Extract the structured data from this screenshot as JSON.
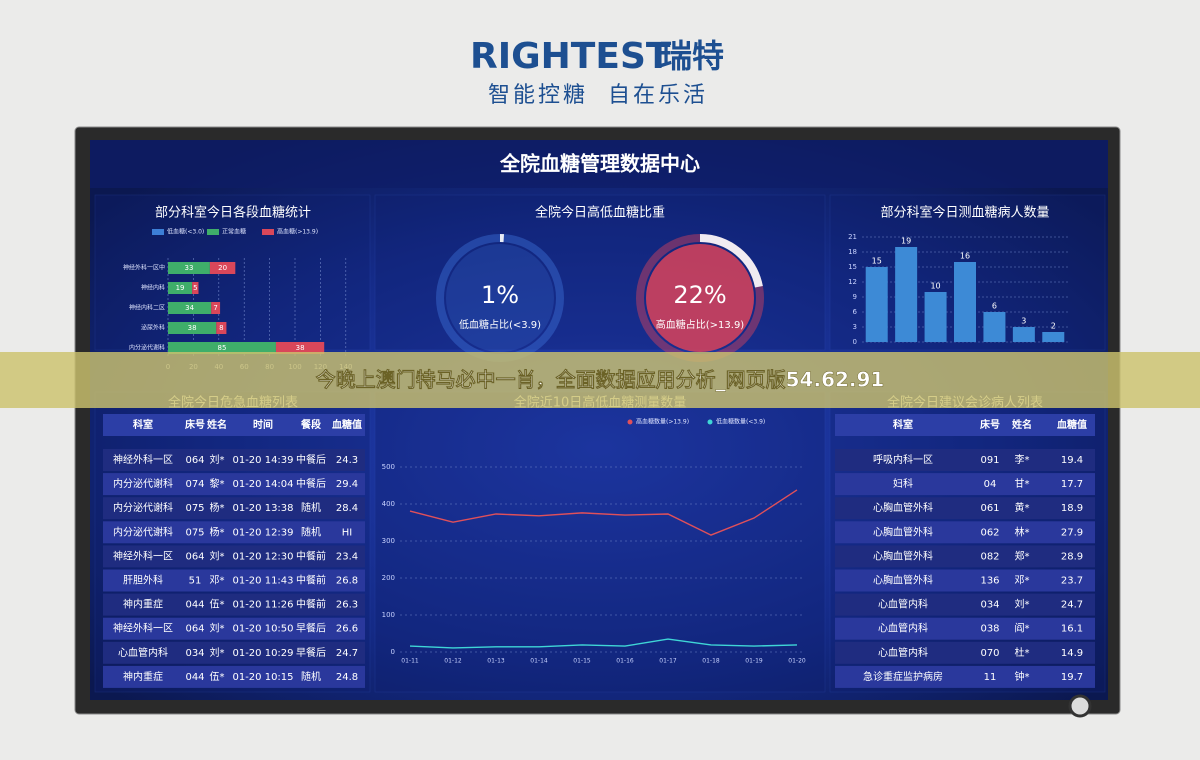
{
  "header": {
    "brand": "RIGHTEST",
    "brand_cn": "瑞特",
    "slogan": "智能控糖  自在乐活"
  },
  "banner": {
    "text": "今晚上澳门特马必中一肖，全面数据应用分析_网页版54.62.91"
  },
  "dashboard": {
    "title": "全院血糖管理数据中心"
  },
  "chart_data": [
    {
      "type": "bar",
      "orientation": "horizontal",
      "stacked": true,
      "title": "部分科室今日各段血糖统计",
      "categories": [
        "神经外科一区中",
        "神经内科",
        "神经内科二区",
        "泌尿外科",
        "内分泌代谢科"
      ],
      "series": [
        {
          "name": "低血糖(<3.0)",
          "color": "#3d7fd6",
          "values": [
            0,
            0,
            0,
            0,
            0
          ]
        },
        {
          "name": "正常血糖",
          "color": "#3fae6a",
          "values": [
            33,
            19,
            34,
            38,
            85
          ]
        },
        {
          "name": "高血糖(>13.9)",
          "color": "#d9475a",
          "values": [
            20,
            5,
            7,
            8,
            38
          ]
        }
      ],
      "xlim": [
        0,
        150
      ],
      "xticks": [
        0,
        20,
        40,
        60,
        80,
        100,
        120,
        140
      ],
      "grid": true
    },
    {
      "type": "gauge",
      "title": "全院今日高低血糖比重",
      "categories": [
        "低血糖占比(<3.9)",
        "高血糖占比(>13.9)"
      ],
      "values": [
        1,
        22
      ],
      "value_labels": [
        "1%",
        "22%"
      ],
      "colors": [
        "#3b6fd4",
        "#d9435a"
      ]
    },
    {
      "type": "bar",
      "orientation": "vertical",
      "title": "部分科室今日测血糖病人数量",
      "categories": [
        null,
        null,
        null,
        null,
        null,
        null,
        null
      ],
      "values": [
        15,
        19,
        10,
        16,
        6,
        3,
        2
      ],
      "color": "#3d8ad6",
      "ylim": [
        0,
        21
      ],
      "yticks": [
        0,
        3,
        6,
        9,
        12,
        15,
        18,
        21
      ],
      "grid": true
    },
    {
      "type": "line",
      "title": "全院近10日高低血糖测量数量",
      "x": [
        "01-11",
        "01-12",
        "01-13",
        "01-14",
        "01-15",
        "01-16",
        "01-17",
        "01-18",
        "01-19",
        "01-20"
      ],
      "series": [
        {
          "name": "高血糖数量(>13.9)",
          "color": "#e0505a",
          "values": [
            381,
            351,
            373,
            368,
            376,
            370,
            373,
            316,
            362,
            438
          ]
        },
        {
          "name": "低血糖数量(<3.9)",
          "color": "#3fd6d6",
          "values": [
            16,
            11,
            14,
            14,
            19,
            16,
            35,
            19,
            16,
            19
          ]
        }
      ],
      "ylim": [
        0,
        500
      ],
      "yticks": [
        0,
        100,
        200,
        300,
        400,
        500
      ],
      "grid": true
    }
  ],
  "tables": [
    {
      "title": "全院今日危急血糖列表",
      "columns": [
        "科室",
        "床号",
        "姓名",
        "时间",
        "餐段",
        "血糖值"
      ],
      "rows": [
        [
          "神经外科一区",
          "064",
          "刘*",
          "01-20 14:39",
          "中餐后",
          "24.3"
        ],
        [
          "内分泌代谢科",
          "074",
          "黎*",
          "01-20 14:04",
          "中餐后",
          "29.4"
        ],
        [
          "内分泌代谢科",
          "075",
          "杨*",
          "01-20 13:38",
          "随机",
          "28.4"
        ],
        [
          "内分泌代谢科",
          "075",
          "杨*",
          "01-20 12:39",
          "随机",
          "HI"
        ],
        [
          "神经外科一区",
          "064",
          "刘*",
          "01-20 12:30",
          "中餐前",
          "23.4"
        ],
        [
          "肝胆外科",
          "51",
          "邓*",
          "01-20 11:43",
          "中餐前",
          "26.8"
        ],
        [
          "神内重症",
          "044",
          "伍*",
          "01-20 11:26",
          "中餐前",
          "26.3"
        ],
        [
          "神经外科一区",
          "064",
          "刘*",
          "01-20 10:50",
          "早餐后",
          "26.6"
        ],
        [
          "心血管内科",
          "034",
          "刘*",
          "01-20 10:29",
          "早餐后",
          "24.7"
        ],
        [
          "神内重症",
          "044",
          "伍*",
          "01-20 10:15",
          "随机",
          "24.8"
        ]
      ]
    },
    {
      "title": "全院今日建议会诊病人列表",
      "columns": [
        "科室",
        "床号",
        "姓名",
        "血糖值"
      ],
      "rows": [
        [
          "呼吸内科一区",
          "091",
          "李*",
          "19.4"
        ],
        [
          "妇科",
          "04",
          "甘*",
          "17.7"
        ],
        [
          "心胸血管外科",
          "061",
          "黄*",
          "18.9"
        ],
        [
          "心胸血管外科",
          "062",
          "林*",
          "27.9"
        ],
        [
          "心胸血管外科",
          "082",
          "郑*",
          "28.9"
        ],
        [
          "心胸血管外科",
          "136",
          "邓*",
          "23.7"
        ],
        [
          "心血管内科",
          "034",
          "刘*",
          "24.7"
        ],
        [
          "心血管内科",
          "038",
          "阎*",
          "16.1"
        ],
        [
          "心血管内科",
          "070",
          "杜*",
          "14.9"
        ],
        [
          "急诊重症监护病房",
          "11",
          "钟*",
          "19.7"
        ]
      ]
    }
  ]
}
